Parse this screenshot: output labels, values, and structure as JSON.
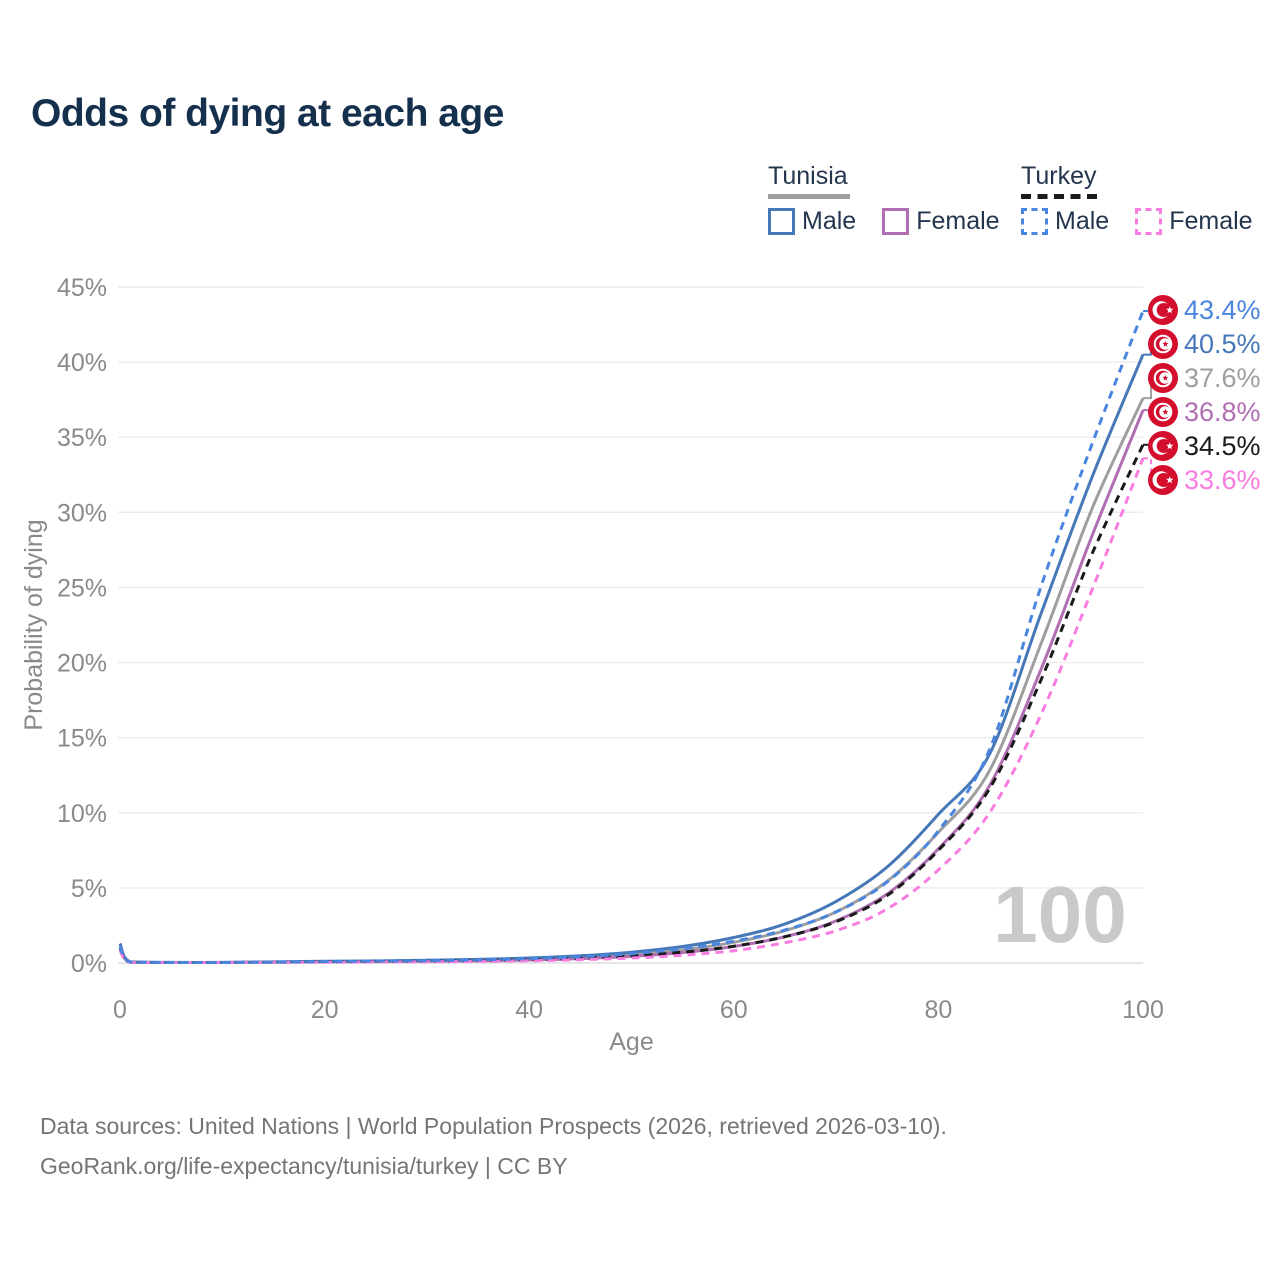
{
  "title": "Odds of dying at each age",
  "legend": {
    "groups": [
      {
        "label": "Tunisia",
        "color": "#9e9e9e",
        "line_style": "solid",
        "items": [
          {
            "label": "Male",
            "color": "#4678b8",
            "line_style": "solid"
          },
          {
            "label": "Female",
            "color": "#b06fb2",
            "line_style": "solid"
          }
        ]
      },
      {
        "label": "Turkey",
        "color": "#1a1a1a",
        "line_style": "dashed",
        "items": [
          {
            "label": "Male",
            "color": "#4a85e0",
            "line_style": "dashed"
          },
          {
            "label": "Female",
            "color": "#f97ce0",
            "line_style": "dashed"
          }
        ]
      }
    ]
  },
  "chart_data": {
    "type": "line",
    "title": "Odds of dying at each age",
    "xlabel": "Age",
    "ylabel": "Probability of dying",
    "xlim": [
      0,
      100
    ],
    "ylim": [
      0,
      45
    ],
    "x_ticks": [
      0,
      20,
      40,
      60,
      80,
      100
    ],
    "y_tick_values": [
      0,
      5,
      10,
      15,
      20,
      25,
      30,
      35,
      40,
      45
    ],
    "y_tick_labels": [
      "0%",
      "5%",
      "10%",
      "15%",
      "20%",
      "25%",
      "30%",
      "35%",
      "40%",
      "45%"
    ],
    "grid": true,
    "legend_position": "top-right",
    "watermark": "100",
    "ages": [
      0,
      1,
      5,
      10,
      15,
      20,
      25,
      30,
      35,
      40,
      45,
      50,
      55,
      60,
      65,
      70,
      75,
      80,
      85,
      90,
      95,
      100
    ],
    "series": [
      {
        "name": "Tunisia",
        "color": "#9e9e9e",
        "dashed": false,
        "flag": "tunisia",
        "end_label": "37.6%",
        "end_value": 37.6,
        "values": [
          1.15,
          0.07,
          0.035,
          0.035,
          0.06,
          0.09,
          0.11,
          0.14,
          0.19,
          0.26,
          0.38,
          0.57,
          0.88,
          1.38,
          2.15,
          3.4,
          5.45,
          8.7,
          12.8,
          21.2,
          30.2,
          37.6
        ]
      },
      {
        "name": "Tunisia Female",
        "color": "#b06fb2",
        "dashed": false,
        "flag": "tunisia",
        "end_label": "36.8%",
        "end_value": 36.8,
        "values": [
          1.0,
          0.06,
          0.03,
          0.03,
          0.05,
          0.07,
          0.09,
          0.11,
          0.14,
          0.2,
          0.29,
          0.45,
          0.7,
          1.1,
          1.75,
          2.8,
          4.6,
          7.6,
          11.8,
          19.5,
          28.4,
          36.8
        ]
      },
      {
        "name": "Tunisia Male",
        "color": "#4678b8",
        "dashed": false,
        "flag": "tunisia",
        "end_label": "40.5%",
        "end_value": 40.5,
        "values": [
          1.3,
          0.08,
          0.04,
          0.04,
          0.07,
          0.11,
          0.14,
          0.18,
          0.24,
          0.33,
          0.48,
          0.72,
          1.1,
          1.7,
          2.6,
          4.1,
          6.4,
          9.9,
          13.9,
          23.2,
          32.3,
          40.5
        ]
      },
      {
        "name": "Turkey",
        "color": "#1a1a1a",
        "dashed": true,
        "flag": "turkey",
        "end_label": "34.5%",
        "end_value": 34.5,
        "values": [
          0.95,
          0.06,
          0.03,
          0.03,
          0.05,
          0.08,
          0.1,
          0.12,
          0.16,
          0.22,
          0.31,
          0.47,
          0.72,
          1.12,
          1.75,
          2.75,
          4.5,
          7.5,
          11.6,
          18.8,
          27.2,
          34.5
        ]
      },
      {
        "name": "Turkey Female",
        "color": "#f97ce0",
        "dashed": true,
        "flag": "turkey",
        "end_label": "33.6%",
        "end_value": 33.6,
        "values": [
          0.85,
          0.05,
          0.025,
          0.025,
          0.04,
          0.05,
          0.07,
          0.08,
          0.11,
          0.15,
          0.22,
          0.33,
          0.52,
          0.82,
          1.35,
          2.15,
          3.6,
          6.2,
          10.0,
          16.5,
          24.8,
          33.6
        ]
      },
      {
        "name": "Turkey Male",
        "color": "#4a85e0",
        "dashed": true,
        "flag": "turkey",
        "end_label": "43.4%",
        "end_value": 43.4,
        "values": [
          1.1,
          0.07,
          0.03,
          0.03,
          0.06,
          0.1,
          0.13,
          0.16,
          0.21,
          0.29,
          0.42,
          0.62,
          0.95,
          1.45,
          2.2,
          3.4,
          5.4,
          8.8,
          14.2,
          25.0,
          34.5,
          43.4
        ]
      }
    ],
    "flag_color": "#d40e2d"
  },
  "footer": {
    "line1": "Data sources: United Nations | World Population Prospects (2026, retrieved 2026-03-10).",
    "line2": "GeoRank.org/life-expectancy/tunisia/turkey | CC BY"
  }
}
